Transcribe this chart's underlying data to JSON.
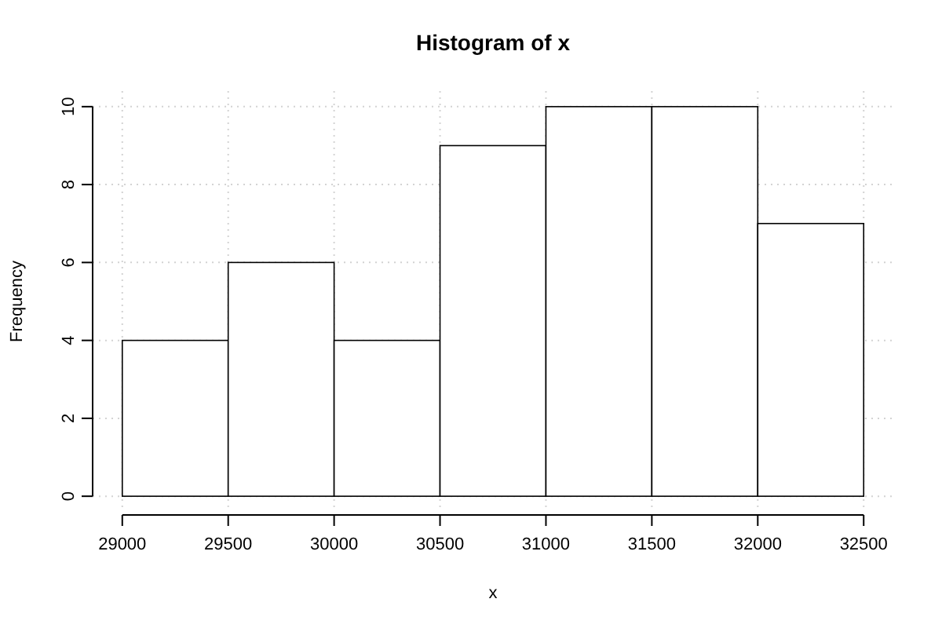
{
  "chart_data": {
    "type": "histogram",
    "title": "Histogram of x",
    "xlabel": "x",
    "ylabel": "Frequency",
    "bins": [
      29000,
      29500,
      30000,
      30500,
      31000,
      31500,
      32000,
      32500
    ],
    "values": [
      4,
      6,
      4,
      9,
      10,
      10,
      7
    ],
    "color": "#ffffff",
    "xlim": [
      28860,
      32640
    ],
    "ylim": [
      -0.4,
      10.4
    ],
    "xticks": [
      29000,
      29500,
      30000,
      30500,
      31000,
      31500,
      32000,
      32500
    ],
    "yticks": [
      0,
      2,
      4,
      6,
      8,
      10
    ],
    "grid": true
  }
}
